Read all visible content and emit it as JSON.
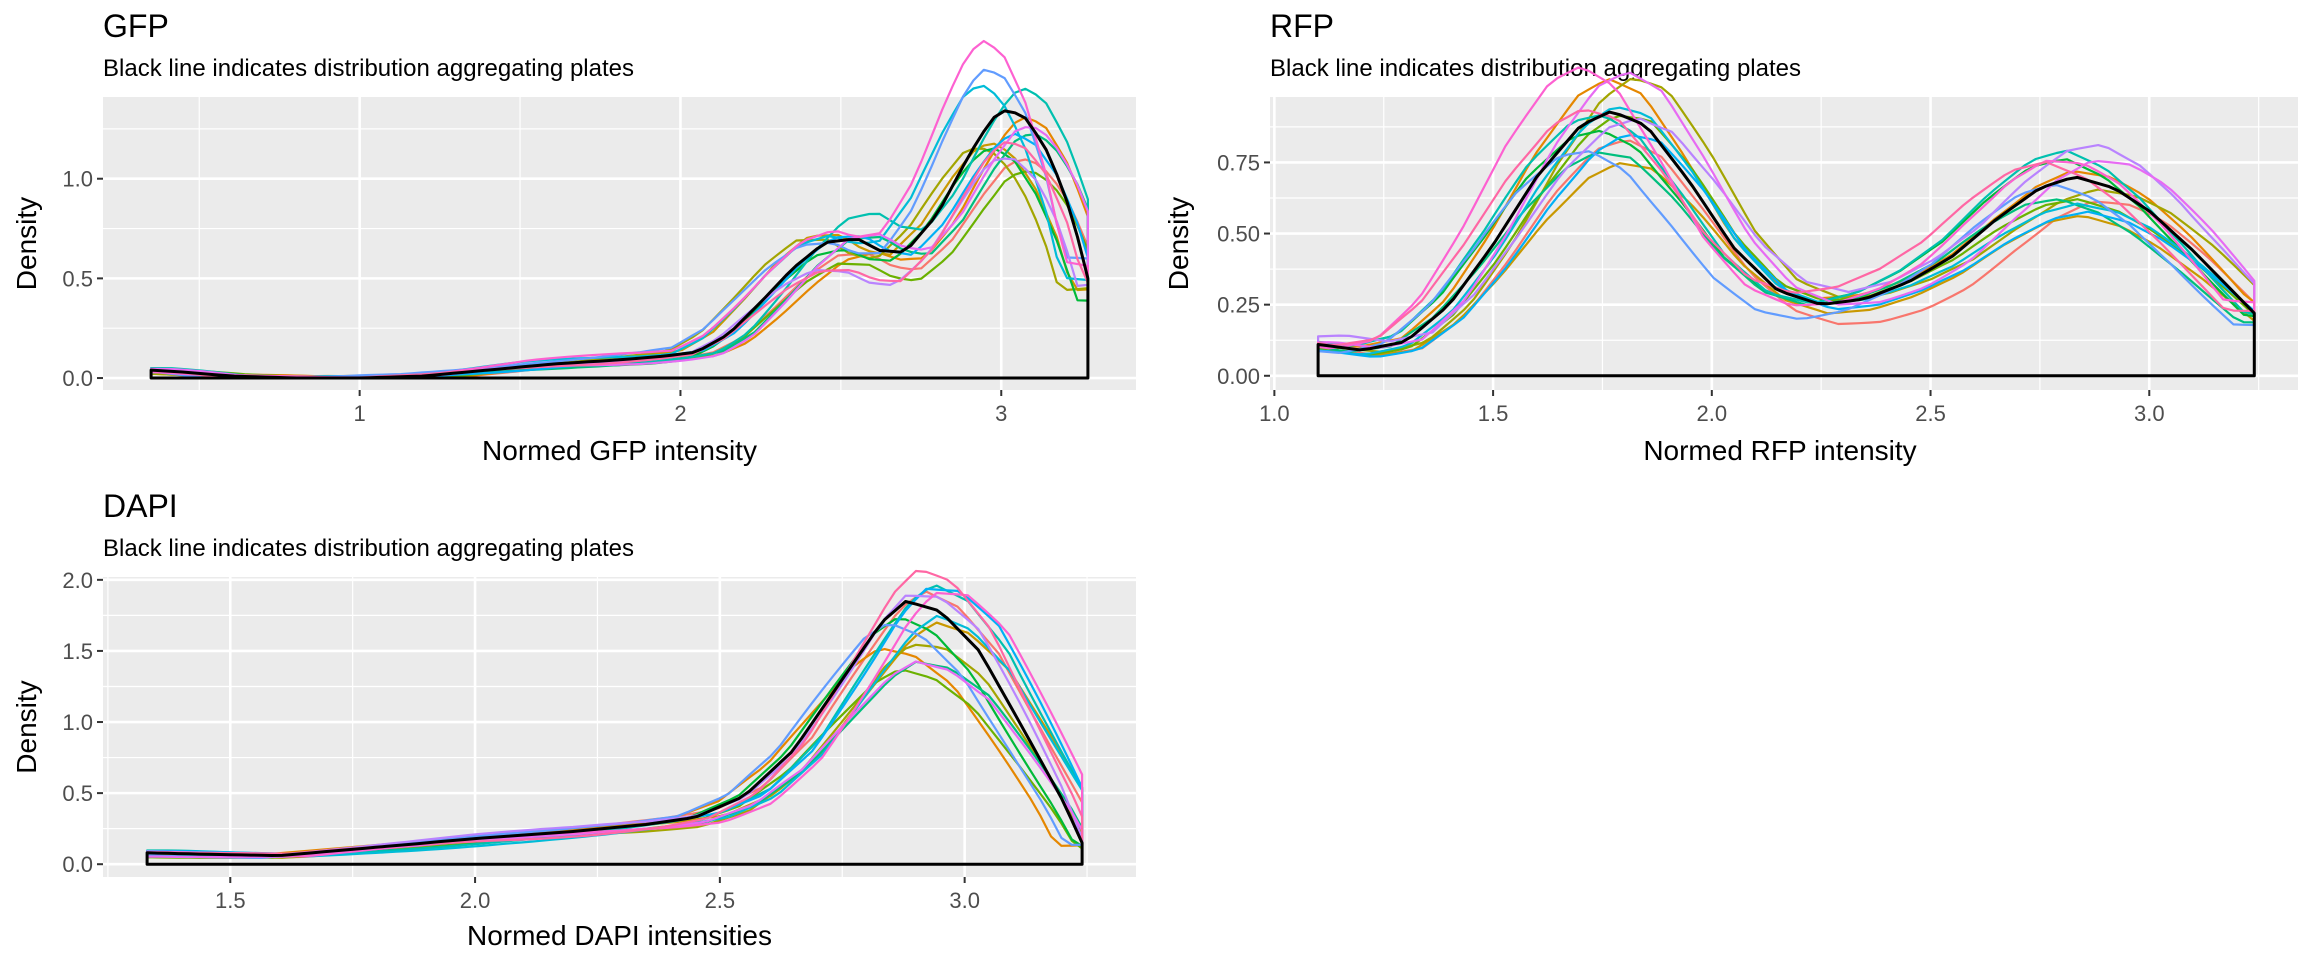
{
  "chart_data": [
    {
      "type": "line",
      "id": "gfp",
      "title": "GFP",
      "subtitle": "Black line indicates distribution aggregating plates",
      "xlabel": "Normed GFP intensity",
      "ylabel": "Density",
      "xlim": [
        0.2,
        3.42
      ],
      "ylim": [
        -0.06,
        1.41
      ],
      "xticks": [
        1,
        2,
        3
      ],
      "xtick_labels": [
        "1",
        "2",
        "3"
      ],
      "yticks": [
        0,
        0.5,
        1
      ],
      "ytick_labels": [
        "0.0",
        "0.5",
        "1.0"
      ],
      "grid": true,
      "legend": "none",
      "range": [
        0.35,
        3.27
      ],
      "aggregate": [
        [
          0.35,
          0.04
        ],
        [
          0.45,
          0.03
        ],
        [
          0.6,
          0.01
        ],
        [
          0.8,
          0.0
        ],
        [
          1.0,
          0.0
        ],
        [
          1.2,
          0.01
        ],
        [
          1.4,
          0.04
        ],
        [
          1.6,
          0.07
        ],
        [
          1.8,
          0.09
        ],
        [
          1.95,
          0.11
        ],
        [
          2.05,
          0.13
        ],
        [
          2.15,
          0.22
        ],
        [
          2.25,
          0.38
        ],
        [
          2.35,
          0.55
        ],
        [
          2.45,
          0.68
        ],
        [
          2.55,
          0.7
        ],
        [
          2.62,
          0.64
        ],
        [
          2.7,
          0.63
        ],
        [
          2.8,
          0.82
        ],
        [
          2.9,
          1.12
        ],
        [
          2.97,
          1.3
        ],
        [
          3.02,
          1.35
        ],
        [
          3.08,
          1.3
        ],
        [
          3.15,
          1.12
        ],
        [
          3.22,
          0.82
        ],
        [
          3.27,
          0.5
        ]
      ]
    },
    {
      "type": "line",
      "id": "rfp",
      "title": "RFP",
      "subtitle": "Black line indicates distribution aggregating plates",
      "xlabel": "Normed RFP intensity",
      "ylabel": "Density",
      "xlim": [
        0.99,
        3.34
      ],
      "ylim": [
        -0.05,
        0.98
      ],
      "xticks": [
        1.0,
        1.5,
        2.0,
        2.5,
        3.0
      ],
      "xtick_labels": [
        "1.0",
        "1.5",
        "2.0",
        "2.5",
        "3.0"
      ],
      "yticks": [
        0,
        0.25,
        0.5,
        0.75
      ],
      "ytick_labels": [
        "0.00",
        "0.25",
        "0.50",
        "0.75"
      ],
      "grid": true,
      "legend": "none",
      "range": [
        1.1,
        3.24
      ],
      "aggregate": [
        [
          1.1,
          0.11
        ],
        [
          1.2,
          0.09
        ],
        [
          1.3,
          0.12
        ],
        [
          1.4,
          0.25
        ],
        [
          1.5,
          0.46
        ],
        [
          1.6,
          0.7
        ],
        [
          1.7,
          0.88
        ],
        [
          1.77,
          0.93
        ],
        [
          1.85,
          0.88
        ],
        [
          1.95,
          0.68
        ],
        [
          2.05,
          0.45
        ],
        [
          2.15,
          0.3
        ],
        [
          2.25,
          0.25
        ],
        [
          2.35,
          0.27
        ],
        [
          2.45,
          0.33
        ],
        [
          2.55,
          0.42
        ],
        [
          2.65,
          0.55
        ],
        [
          2.75,
          0.66
        ],
        [
          2.83,
          0.7
        ],
        [
          2.92,
          0.66
        ],
        [
          3.0,
          0.58
        ],
        [
          3.1,
          0.44
        ],
        [
          3.24,
          0.22
        ]
      ]
    },
    {
      "type": "line",
      "id": "dapi",
      "title": "DAPI",
      "subtitle": "Black line indicates distribution aggregating plates",
      "xlabel": "Normed DAPI intensities",
      "ylabel": "Density",
      "xlim": [
        1.24,
        3.35
      ],
      "ylim": [
        -0.09,
        2.02
      ],
      "xticks": [
        1.5,
        2.0,
        2.5,
        3.0
      ],
      "xtick_labels": [
        "1.5",
        "2.0",
        "2.5",
        "3.0"
      ],
      "yticks": [
        0,
        0.5,
        1,
        1.5,
        2
      ],
      "ytick_labels": [
        "0.0",
        "0.5",
        "1.0",
        "1.5",
        "2.0"
      ],
      "grid": true,
      "legend": "none",
      "range": [
        1.33,
        3.24
      ],
      "aggregate": [
        [
          1.33,
          0.08
        ],
        [
          1.45,
          0.07
        ],
        [
          1.6,
          0.06
        ],
        [
          1.8,
          0.12
        ],
        [
          2.0,
          0.18
        ],
        [
          2.2,
          0.23
        ],
        [
          2.35,
          0.28
        ],
        [
          2.45,
          0.33
        ],
        [
          2.55,
          0.48
        ],
        [
          2.65,
          0.8
        ],
        [
          2.75,
          1.3
        ],
        [
          2.83,
          1.7
        ],
        [
          2.88,
          1.85
        ],
        [
          2.95,
          1.78
        ],
        [
          3.03,
          1.5
        ],
        [
          3.12,
          0.95
        ],
        [
          3.2,
          0.45
        ],
        [
          3.24,
          0.15
        ]
      ]
    }
  ],
  "colors": {
    "panel_background": "#ebebeb",
    "grid_major": "#ffffff",
    "aggregate_line": "#000000",
    "plates": [
      "#f8766d",
      "#e58700",
      "#c99800",
      "#a3a500",
      "#6bb100",
      "#00ba38",
      "#00bf7d",
      "#00c0af",
      "#00bcd8",
      "#00b0f6",
      "#619cff",
      "#b983ff",
      "#e76bf3",
      "#fd61d1",
      "#ff67a4"
    ]
  }
}
